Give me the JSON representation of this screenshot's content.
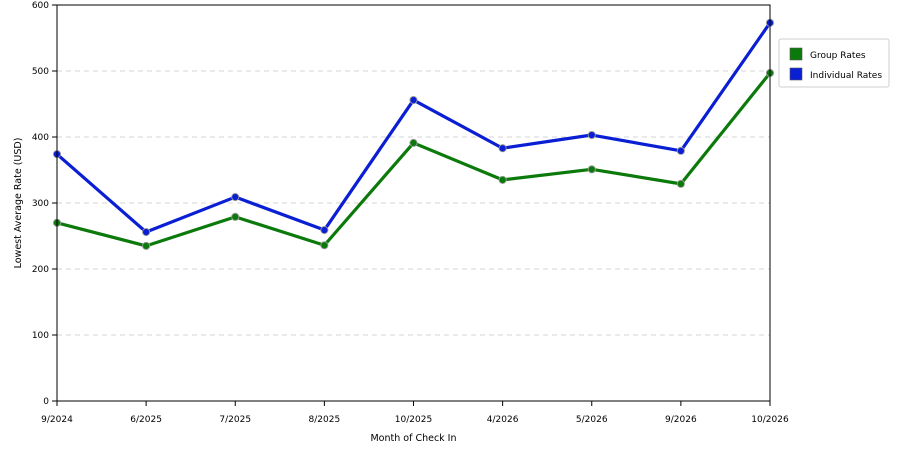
{
  "chart_data": {
    "type": "line",
    "title": "",
    "xlabel": "Month of Check In",
    "ylabel": "Lowest Average Rate (USD)",
    "categories": [
      "9/2024",
      "6/2025",
      "7/2025",
      "8/2025",
      "10/2025",
      "4/2026",
      "5/2026",
      "9/2026",
      "10/2026"
    ],
    "ylim": [
      0,
      600
    ],
    "yticks": [
      0,
      100,
      200,
      300,
      400,
      500,
      600
    ],
    "grid": "horizontal-dashed",
    "legend_position": "right",
    "series": [
      {
        "name": "Group Rates",
        "color": "#0b7a0b",
        "values": [
          270,
          235,
          279,
          236,
          391,
          335,
          351,
          329,
          497
        ]
      },
      {
        "name": "Individual Rates",
        "color": "#0a1fd4",
        "values": [
          374,
          256,
          309,
          259,
          456,
          383,
          403,
          379,
          573
        ]
      }
    ]
  }
}
